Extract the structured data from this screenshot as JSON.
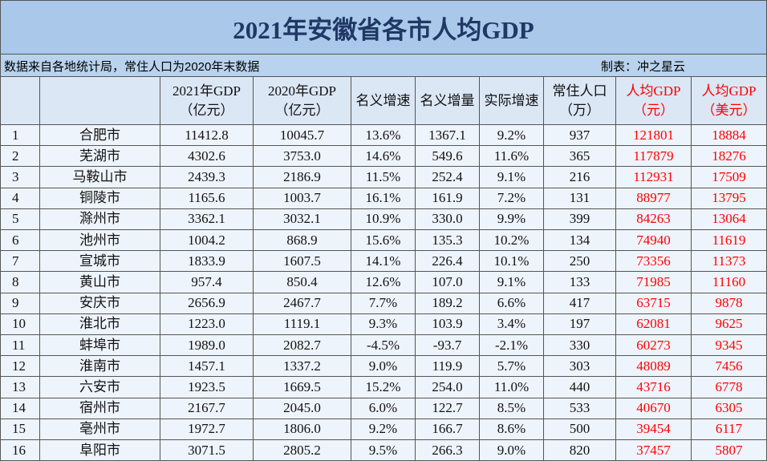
{
  "header": {
    "title": "2021年安徽省各市人均GDP",
    "source": "数据来自各地统计局，常住人口为2020年末数据",
    "author": "制表：冲之星云"
  },
  "table": {
    "columns": [
      [
        "2021年GDP",
        "（亿元）"
      ],
      [
        "2020年GDP",
        "（亿元）"
      ],
      [
        "名义增速"
      ],
      [
        "名义增量"
      ],
      [
        "实际增速"
      ],
      [
        "常住人口",
        "（万）"
      ],
      [
        "人均GDP",
        "（元）"
      ],
      [
        "人均GDP",
        "（美元）"
      ]
    ],
    "rows": [
      [
        "1",
        "合肥市",
        "11412.8",
        "10045.7",
        "13.6%",
        "1367.1",
        "9.2%",
        "937",
        "121801",
        "18884"
      ],
      [
        "2",
        "芜湖市",
        "4302.6",
        "3753.0",
        "14.6%",
        "549.6",
        "11.6%",
        "365",
        "117879",
        "18276"
      ],
      [
        "3",
        "马鞍山市",
        "2439.3",
        "2186.9",
        "11.5%",
        "252.4",
        "9.1%",
        "216",
        "112931",
        "17509"
      ],
      [
        "4",
        "铜陵市",
        "1165.6",
        "1003.7",
        "16.1%",
        "161.9",
        "7.2%",
        "131",
        "88977",
        "13795"
      ],
      [
        "5",
        "滁州市",
        "3362.1",
        "3032.1",
        "10.9%",
        "330.0",
        "9.9%",
        "399",
        "84263",
        "13064"
      ],
      [
        "6",
        "池州市",
        "1004.2",
        "868.9",
        "15.6%",
        "135.3",
        "10.2%",
        "134",
        "74940",
        "11619"
      ],
      [
        "7",
        "宣城市",
        "1833.9",
        "1607.5",
        "14.1%",
        "226.4",
        "10.1%",
        "250",
        "73356",
        "11373"
      ],
      [
        "8",
        "黄山市",
        "957.4",
        "850.4",
        "12.6%",
        "107.0",
        "9.1%",
        "133",
        "71985",
        "11160"
      ],
      [
        "9",
        "安庆市",
        "2656.9",
        "2467.7",
        "7.7%",
        "189.2",
        "6.6%",
        "417",
        "63715",
        "9878"
      ],
      [
        "10",
        "淮北市",
        "1223.0",
        "1119.1",
        "9.3%",
        "103.9",
        "3.4%",
        "197",
        "62081",
        "9625"
      ],
      [
        "11",
        "蚌埠市",
        "1989.0",
        "2082.7",
        "-4.5%",
        "-93.7",
        "-2.1%",
        "330",
        "60273",
        "9345"
      ],
      [
        "12",
        "淮南市",
        "1457.1",
        "1337.2",
        "9.0%",
        "119.9",
        "5.7%",
        "303",
        "48089",
        "7456"
      ],
      [
        "13",
        "六安市",
        "1923.5",
        "1669.5",
        "15.2%",
        "254.0",
        "11.0%",
        "440",
        "43716",
        "6778"
      ],
      [
        "14",
        "宿州市",
        "2167.7",
        "2045.0",
        "6.0%",
        "122.7",
        "8.5%",
        "533",
        "40670",
        "6305"
      ],
      [
        "15",
        "亳州市",
        "1972.7",
        "1806.0",
        "9.2%",
        "166.7",
        "8.6%",
        "500",
        "39454",
        "6117"
      ],
      [
        "16",
        "阜阳市",
        "3071.5",
        "2805.2",
        "9.5%",
        "266.3",
        "9.0%",
        "820",
        "37457",
        "5807"
      ]
    ]
  }
}
